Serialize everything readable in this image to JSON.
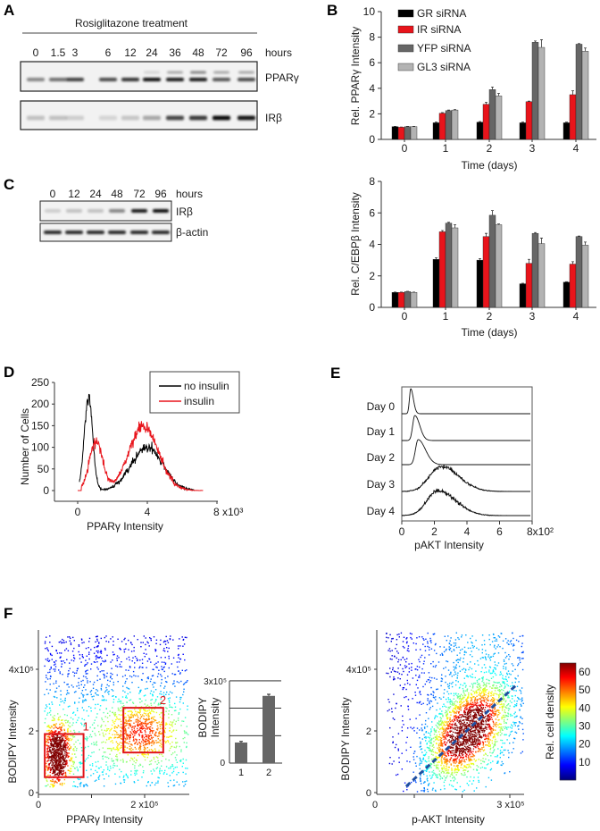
{
  "panel_labels": {
    "a": "A",
    "b": "B",
    "c": "C",
    "d": "D",
    "e": "E",
    "f": "F"
  },
  "panelA": {
    "title": "Rosiglitazone treatment",
    "hours_label": "hours",
    "lanes": [
      "0",
      "1.5",
      "3",
      "6",
      "12",
      "24",
      "36",
      "48",
      "72",
      "96"
    ],
    "blot_labels": [
      "PPARγ",
      "IRβ"
    ],
    "pparg_lower_band": [
      0.45,
      0.55,
      0.75,
      0.7,
      0.8,
      0.95,
      0.9,
      0.9,
      0.65,
      0.7
    ],
    "pparg_upper_band": [
      0,
      0,
      0,
      0,
      0,
      0.12,
      0.3,
      0.45,
      0.3,
      0.3
    ],
    "irb_band": [
      0.2,
      0.2,
      0.15,
      0.12,
      0.18,
      0.3,
      0.7,
      0.75,
      0.95,
      0.9
    ]
  },
  "panelC": {
    "hours_label": "hours",
    "lanes": [
      "0",
      "12",
      "24",
      "48",
      "72",
      "96"
    ],
    "blot_labels": [
      "IRβ",
      "β-actin"
    ],
    "irb_band": [
      0.15,
      0.2,
      0.2,
      0.45,
      0.9,
      0.95
    ],
    "actin_band": [
      0.85,
      0.85,
      0.85,
      0.85,
      0.85,
      0.85
    ]
  },
  "chart_data": [
    {
      "id": "B-top",
      "type": "bar",
      "title": "",
      "categories": [
        "0",
        "1",
        "2",
        "3",
        "4"
      ],
      "xlabel": "Time (days)",
      "ylabel": "Rel. PPARγ Intensity",
      "ylim": [
        0,
        10
      ],
      "yticks": [
        "0",
        "2",
        "4",
        "6",
        "8",
        "10"
      ],
      "legend": "top-left",
      "series": [
        {
          "name": "GR siRNA",
          "color": "#000000",
          "values": [
            1.0,
            1.3,
            1.35,
            1.3,
            1.3
          ],
          "errors": [
            0.02,
            0.05,
            0.05,
            0.05,
            0.05
          ]
        },
        {
          "name": "IR siRNA",
          "color": "#e8141b",
          "values": [
            0.95,
            2.05,
            2.75,
            2.95,
            3.5
          ],
          "errors": [
            0.02,
            0.05,
            0.15,
            0.05,
            0.3
          ]
        },
        {
          "name": "YFP siRNA",
          "color": "#666666",
          "values": [
            1.0,
            2.25,
            3.9,
            7.6,
            7.45
          ],
          "errors": [
            0.02,
            0.05,
            0.2,
            0.1,
            0.05
          ]
        },
        {
          "name": "GL3 siRNA",
          "color": "#b3b3b3",
          "values": [
            1.0,
            2.3,
            3.4,
            7.2,
            6.9
          ],
          "errors": [
            0.02,
            0.03,
            0.2,
            0.6,
            0.25
          ]
        }
      ]
    },
    {
      "id": "B-bottom",
      "type": "bar",
      "title": "",
      "categories": [
        "0",
        "1",
        "2",
        "3",
        "4"
      ],
      "xlabel": "Time (days)",
      "ylabel": "Rel. C/EBPβ Intensity",
      "ylim": [
        0,
        8
      ],
      "yticks": [
        "0",
        "2",
        "4",
        "6",
        "8"
      ],
      "series": [
        {
          "name": "GR siRNA",
          "color": "#000000",
          "values": [
            0.95,
            3.05,
            3.0,
            1.5,
            1.6
          ],
          "errors": [
            0.02,
            0.1,
            0.1,
            0.03,
            0.03
          ]
        },
        {
          "name": "IR siRNA",
          "color": "#e8141b",
          "values": [
            0.95,
            4.8,
            4.5,
            2.8,
            2.75
          ],
          "errors": [
            0.02,
            0.08,
            0.2,
            0.25,
            0.15
          ]
        },
        {
          "name": "YFP siRNA",
          "color": "#666666",
          "values": [
            1.0,
            5.35,
            5.85,
            4.7,
            4.5
          ],
          "errors": [
            0.02,
            0.05,
            0.3,
            0.05,
            0.03
          ]
        },
        {
          "name": "GL3 siRNA",
          "color": "#b3b3b3",
          "values": [
            0.95,
            5.05,
            5.25,
            4.05,
            3.95
          ],
          "errors": [
            0.02,
            0.2,
            0.05,
            0.35,
            0.2
          ]
        }
      ]
    },
    {
      "id": "D",
      "type": "line",
      "title": "",
      "xlabel": "PPARγ Intensity",
      "ylabel": "Number of Cells",
      "xlim": [
        -1.2,
        8
      ],
      "ylim": [
        -25,
        250
      ],
      "xticks": [
        "0",
        "4",
        "8 x10³"
      ],
      "xtick_values": [
        0,
        4,
        8
      ],
      "yticks": [
        "0",
        "50",
        "100",
        "150",
        "200",
        "250"
      ],
      "legend": "top-right",
      "series": [
        {
          "name": "no insulin",
          "color": "#000000",
          "range": [
            0.1,
            6.7
          ],
          "peaks": [
            {
              "center": 0.62,
              "height": 212,
              "width": 0.24
            },
            {
              "center": 4.0,
              "height": 100,
              "width": 0.9
            }
          ]
        },
        {
          "name": "insulin",
          "color": "#e8141b",
          "range": [
            0.0,
            7.2
          ],
          "peaks": [
            {
              "center": 1.05,
              "height": 112,
              "width": 0.38
            },
            {
              "center": 3.8,
              "height": 148,
              "width": 0.85
            }
          ]
        }
      ]
    },
    {
      "id": "E",
      "type": "line",
      "title": "",
      "xlabel": "pAKT Intensity",
      "xlim": [
        0,
        8
      ],
      "xticks": [
        "0",
        "2",
        "4",
        "6",
        "8x10²"
      ],
      "series": [
        {
          "name": "Day 0",
          "peak": 0.55,
          "width_left": 0.08,
          "width_right": 0.16
        },
        {
          "name": "Day 1",
          "peak": 0.8,
          "width_left": 0.13,
          "width_right": 0.3
        },
        {
          "name": "Day 2",
          "peak": 1.0,
          "width_left": 0.16,
          "width_right": 0.45
        },
        {
          "name": "Day 3",
          "peak": 2.4,
          "width_left": 0.7,
          "width_right": 1.1
        },
        {
          "name": "Day 4",
          "peak": 2.2,
          "width_left": 0.65,
          "width_right": 1.1
        }
      ]
    },
    {
      "id": "F-left",
      "type": "scatter",
      "title": "",
      "xlabel": "PPARγ Intensity",
      "ylabel": "BODIPY Intensity",
      "xlim": [
        0,
        2.85
      ],
      "ylim": [
        0,
        5.2
      ],
      "units": "x10⁵",
      "xticks": [
        "0",
        "2 x10⁵"
      ],
      "yticks": [
        "0",
        "2",
        "4x10⁵"
      ],
      "clusters": [
        {
          "center": [
            0.35,
            1.3
          ],
          "spread": [
            0.13,
            0.55
          ]
        },
        {
          "center": [
            1.9,
            2.0
          ],
          "spread": [
            0.35,
            0.5
          ]
        }
      ],
      "gates": [
        {
          "label": "1",
          "x": [
            0.12,
            0.85
          ],
          "y": [
            0.5,
            1.9
          ]
        },
        {
          "label": "2",
          "x": [
            1.6,
            2.35
          ],
          "y": [
            1.3,
            2.75
          ]
        }
      ]
    },
    {
      "id": "F-inset",
      "type": "bar",
      "title": "",
      "categories": [
        "1",
        "2"
      ],
      "ylabel_lines": [
        "BODIPY",
        "Intensity"
      ],
      "ylim": [
        0,
        3
      ],
      "yticks": [
        "0",
        "3x10⁵"
      ],
      "gridlines": [
        1,
        2,
        3
      ],
      "values": [
        0.75,
        2.45
      ],
      "errors": [
        0.04,
        0.06
      ],
      "color": "#666666"
    },
    {
      "id": "F-right",
      "type": "scatter",
      "title": "",
      "xlabel": "p-AKT Intensity",
      "ylabel": "BODIPY Intensity",
      "xlim": [
        0.2,
        3.3
      ],
      "ylim": [
        0,
        5.2
      ],
      "xticks": [
        "0",
        "3 x10⁵"
      ],
      "yticks": [
        "0",
        "2",
        "4x10⁵"
      ],
      "cluster": {
        "center": [
          2.1,
          2.0
        ],
        "spread": [
          0.5,
          0.8
        ]
      },
      "trend_line": {
        "from": [
          0.83,
          0.2
        ],
        "to": [
          3.13,
          3.48
        ],
        "color": "#1f4fa0"
      },
      "colorbar": {
        "label": "Rel. cell density",
        "ticks": [
          "10",
          "20",
          "30",
          "40",
          "50",
          "60"
        ],
        "range": [
          0,
          65
        ]
      }
    }
  ]
}
